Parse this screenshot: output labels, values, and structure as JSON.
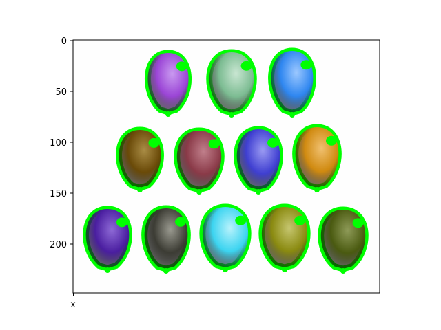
{
  "axes": {
    "y_ticks": [
      "0",
      "50",
      "100",
      "150",
      "200"
    ],
    "x_ticks": [
      "x"
    ]
  },
  "image": {
    "outline_color": "#00ff00",
    "balloons": [
      {
        "name": "purple",
        "color": "#9b45d6",
        "highlight": "#c99af0"
      },
      {
        "name": "sage",
        "color": "#7cbc92",
        "highlight": "#c9e6d2"
      },
      {
        "name": "blue",
        "color": "#2e86f0",
        "highlight": "#9cc8ff"
      },
      {
        "name": "dark-olive",
        "color": "#6a4a08",
        "highlight": "#a98c45"
      },
      {
        "name": "maroon",
        "color": "#8a3a48",
        "highlight": "#c07f8b"
      },
      {
        "name": "indigo",
        "color": "#3f3fd1",
        "highlight": "#9a9af2"
      },
      {
        "name": "orange",
        "color": "#d08a10",
        "highlight": "#f0c070"
      },
      {
        "name": "deep-purple",
        "color": "#4a1ea0",
        "highlight": "#8e6ad6"
      },
      {
        "name": "charcoal",
        "color": "#3c3c34",
        "highlight": "#9a9a90"
      },
      {
        "name": "cyan",
        "color": "#3cd4f0",
        "highlight": "#b8f2fc"
      },
      {
        "name": "olive",
        "color": "#8a8a10",
        "highlight": "#c6c670"
      },
      {
        "name": "moss",
        "color": "#4a5a10",
        "highlight": "#8e9a58"
      }
    ]
  }
}
